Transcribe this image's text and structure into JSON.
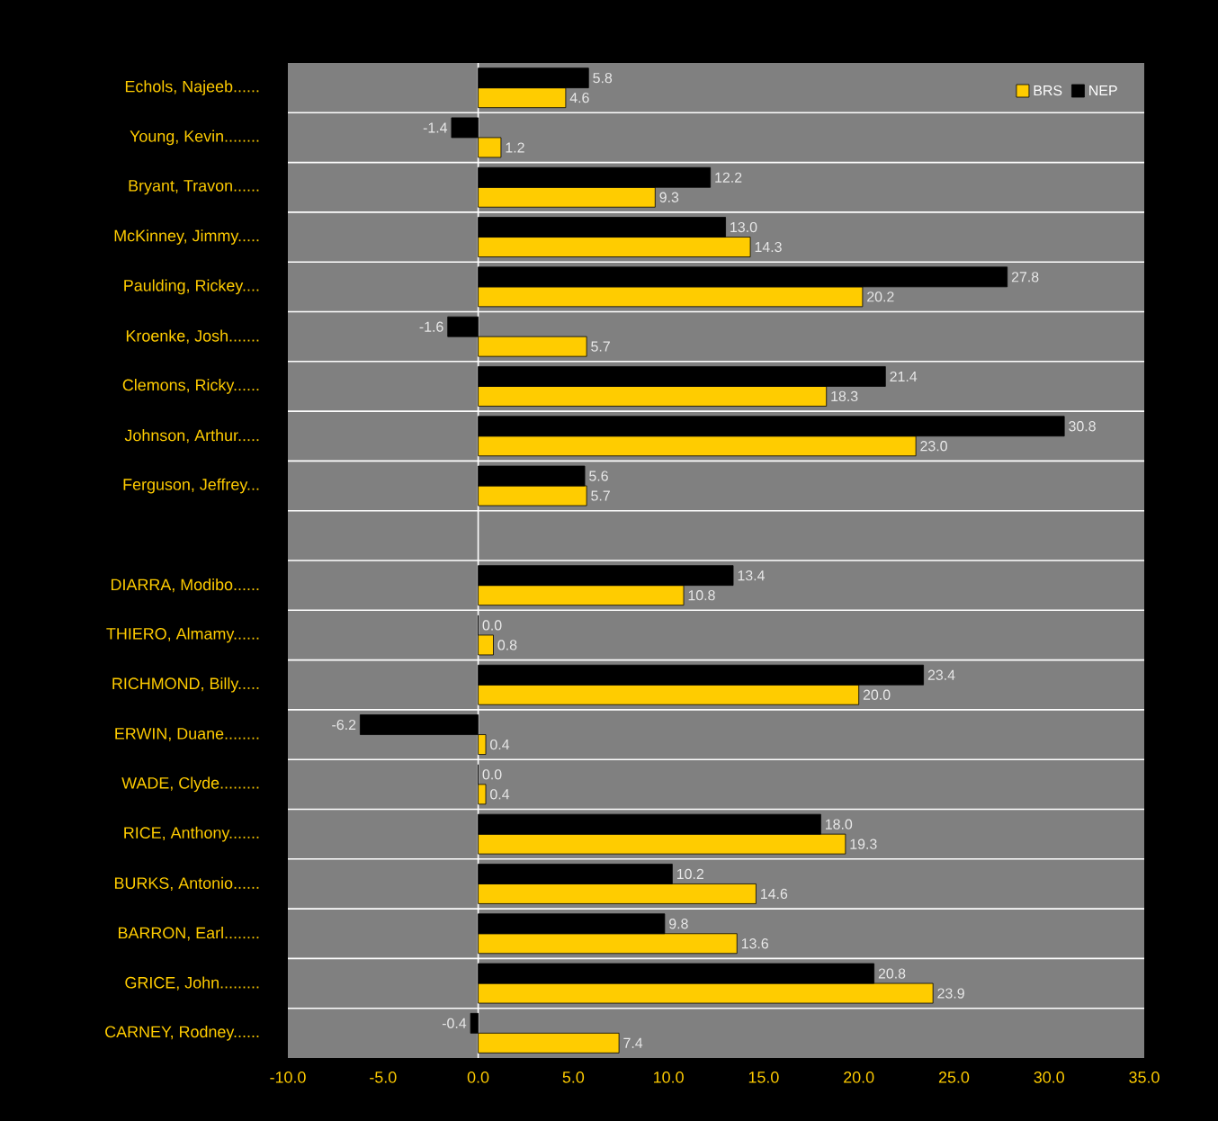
{
  "chart_data": {
    "type": "bar",
    "orientation": "horizontal",
    "categories": [
      "Echols, Najeeb......",
      "Young, Kevin........",
      "Bryant, Travon......",
      "McKinney, Jimmy.....",
      "Paulding, Rickey....",
      "Kroenke, Josh.......",
      "Clemons, Ricky......",
      "Johnson, Arthur.....",
      "Ferguson, Jeffrey...",
      null,
      "DIARRA, Modibo......",
      "THIERO, Almamy......",
      "RICHMOND, Billy.....",
      "ERWIN, Duane........",
      "WADE, Clyde.........",
      "RICE, Anthony.......",
      "BURKS, Antonio......",
      "BARRON, Earl........",
      "GRICE, John.........",
      "CARNEY, Rodney......"
    ],
    "series": [
      {
        "name": "NEP",
        "color": "#000000",
        "values": [
          5.8,
          -1.4,
          12.2,
          13.0,
          27.8,
          -1.6,
          21.4,
          30.8,
          5.6,
          null,
          13.4,
          0.0,
          23.4,
          -6.2,
          0.0,
          18.0,
          10.2,
          9.8,
          20.8,
          -0.4
        ],
        "value_labels": [
          "5.8",
          "-1.4",
          "12.2",
          "13.0",
          "27.8",
          "-1.6",
          "21.4",
          "30.8",
          "5.6",
          null,
          "13.4",
          "0.0",
          "23.4",
          "-6.2",
          "0.0",
          "18.0",
          "10.2",
          "9.8",
          "20.8",
          "-0.4"
        ]
      },
      {
        "name": "BRS",
        "color": "#ffcc00",
        "values": [
          4.6,
          1.2,
          9.3,
          14.3,
          20.2,
          5.7,
          18.3,
          23.0,
          5.7,
          null,
          10.8,
          0.8,
          20.0,
          0.4,
          0.4,
          19.3,
          14.6,
          13.6,
          23.9,
          7.4
        ],
        "value_labels": [
          "4.6",
          "1.2",
          "9.3",
          "14.3",
          "20.2",
          "5.7",
          "18.3",
          "23.0",
          "5.7",
          null,
          "10.8",
          "0.8",
          "20.0",
          "0.4",
          "0.4",
          "19.3",
          "14.6",
          "13.6",
          "23.9",
          "7.4"
        ]
      }
    ],
    "xlim": [
      -10,
      35
    ],
    "xticks": [
      {
        "value": -10,
        "label": "-10.0"
      },
      {
        "value": -5,
        "label": "-5.0"
      },
      {
        "value": 0,
        "label": "0.0"
      },
      {
        "value": 5,
        "label": "5.0"
      },
      {
        "value": 10,
        "label": "10.0"
      },
      {
        "value": 15,
        "label": "15.0"
      },
      {
        "value": 20,
        "label": "20.0"
      },
      {
        "value": 25,
        "label": "25.0"
      },
      {
        "value": 30,
        "label": "30.0"
      },
      {
        "value": 35,
        "label": "35.0"
      }
    ],
    "ref_lines": [
      {
        "axis": "x",
        "value": 0,
        "color": "#ffffff"
      }
    ],
    "grid": "y",
    "legend": "top right"
  }
}
